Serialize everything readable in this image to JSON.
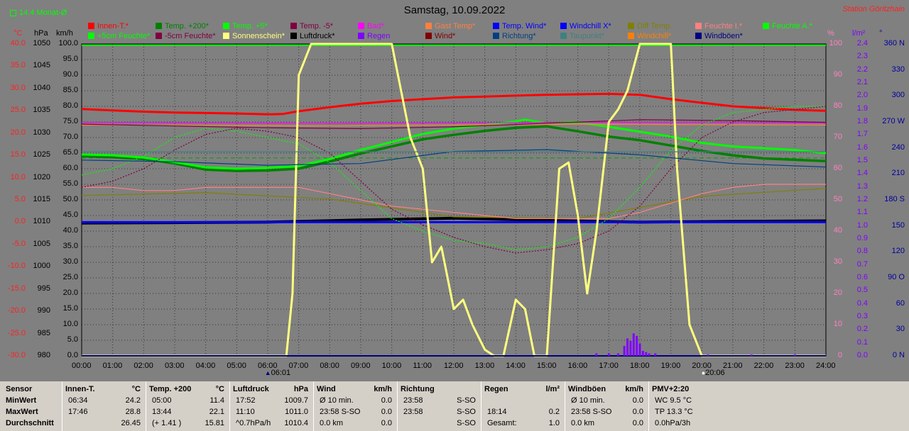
{
  "title": "Samstag, 10.09.2022",
  "station": "Station Göritzhain",
  "avg_indicator": "14.4 Monat-Ø",
  "units": {
    "c": "°C",
    "hpa": "hPa",
    "kmh": "km/h",
    "pct": "%",
    "lm2": "l/m²",
    "deg": "°"
  },
  "legend": [
    {
      "label": "Innen-T.*",
      "color": "#ff0000"
    },
    {
      "label": "Temp. +200*",
      "color": "#008000"
    },
    {
      "label": "Temp. +5*",
      "color": "#00ff00"
    },
    {
      "label": "Temp. -5*",
      "color": "#800040"
    },
    {
      "label": "Bad*",
      "color": "#ff00ff"
    },
    {
      "label": "Gast Temp*",
      "color": "#ff8040"
    },
    {
      "label": "Temp. Wind*",
      "color": "#0000ff"
    },
    {
      "label": "Windchill X*",
      "color": "#0000ff"
    },
    {
      "label": "Diff Temp.",
      "color": "#808000"
    },
    {
      "label": "Feuchte I.*",
      "color": "#ff8080"
    },
    {
      "label": "Feuchte A.*",
      "color": "#00ff00"
    },
    {
      "label": "+5cm Feuchte*",
      "color": "#00ff00"
    },
    {
      "label": "-5cm Feuchte*",
      "color": "#800040"
    },
    {
      "label": "Sonnenschein*",
      "color": "#ffff80"
    },
    {
      "label": "Luftdruck*",
      "color": "#000000"
    },
    {
      "label": "Regen",
      "color": "#8000ff"
    },
    {
      "label": "Wind*",
      "color": "#800000"
    },
    {
      "label": "Richtung*",
      "color": "#004080"
    },
    {
      "label": "Taupunkt*",
      "color": "#408080"
    },
    {
      "label": "Windchill*",
      "color": "#ff8000"
    },
    {
      "label": "Windböen*",
      "color": "#000080"
    }
  ],
  "chart_data": {
    "type": "line",
    "title": "Samstag, 10.09.2022",
    "x_labels": [
      "00:00",
      "01:00",
      "02:00",
      "03:00",
      "04:00",
      "05:00",
      "06:00",
      "07:00",
      "08:00",
      "09:00",
      "10:00",
      "11:00",
      "12:00",
      "13:00",
      "14:00",
      "15:00",
      "16:00",
      "17:00",
      "18:00",
      "19:00",
      "20:00",
      "21:00",
      "22:00",
      "23:00",
      "24:00"
    ],
    "xlim": [
      0,
      24
    ],
    "axes": {
      "temp_c": {
        "ticks": [
          "40.0",
          "35.0",
          "30.0",
          "25.0",
          "20.0",
          "15.0",
          "10.0",
          "5.0",
          "0.0",
          "-5.0",
          "-10.0",
          "-15.0",
          "-20.0",
          "-25.0",
          "-30.0"
        ],
        "range": [
          -30,
          40
        ],
        "color": "#ff0000"
      },
      "pressure_hpa": {
        "ticks": [
          "1050",
          "1045",
          "1040",
          "1035",
          "1030",
          "1025",
          "1020",
          "1015",
          "1010",
          "1005",
          "1000",
          "995",
          "990",
          "985",
          "980"
        ],
        "range": [
          980,
          1050
        ],
        "color": "#000000"
      },
      "wind_kmh": {
        "ticks": [
          "100.0",
          "95.0",
          "90.0",
          "85.0",
          "80.0",
          "75.0",
          "70.0",
          "65.0",
          "60.0",
          "55.0",
          "50.0",
          "45.0",
          "40.0",
          "35.0",
          "30.0",
          "25.0",
          "20.0",
          "15.0",
          "10.0",
          "5.0",
          "0.0"
        ],
        "range": [
          0,
          100
        ],
        "color": "#000000"
      },
      "humidity_pct": {
        "ticks": [
          "100",
          "90",
          "80",
          "70",
          "60",
          "50",
          "40",
          "30",
          "20",
          "10",
          "0"
        ],
        "range": [
          0,
          100
        ],
        "color": "#ff8080"
      },
      "rain_lm2": {
        "ticks": [
          "2.4",
          "2.3",
          "2.2",
          "2.1",
          "2.0",
          "1.9",
          "1.8",
          "1.7",
          "1.6",
          "1.5",
          "1.4",
          "1.3",
          "1.2",
          "1.1",
          "1.0",
          "0.9",
          "0.8",
          "0.7",
          "0.6",
          "0.5",
          "0.4",
          "0.3",
          "0.2",
          "0.1",
          "0.0"
        ],
        "range": [
          0,
          2.5
        ],
        "color": "#8000ff"
      },
      "direction_deg": {
        "ticks": [
          "360 N",
          "330",
          "300",
          "270 W",
          "240",
          "210",
          "180 S",
          "150",
          "120",
          "90 O",
          "60",
          "30",
          "0 N"
        ],
        "range": [
          0,
          360
        ],
        "color": "#0000a0"
      }
    },
    "series": [
      {
        "name": "Innen-T.*",
        "axis": "temp_c",
        "color": "#ff0000",
        "x": [
          0,
          1,
          2,
          3,
          4,
          5,
          6,
          6.5,
          7,
          8,
          9,
          10,
          11,
          12,
          13,
          14,
          15,
          16,
          17,
          18,
          19,
          20,
          21,
          22,
          23,
          24
        ],
        "y": [
          25.4,
          25.1,
          24.8,
          24.6,
          24.5,
          24.4,
          24.2,
          24.3,
          24.9,
          25.8,
          26.6,
          27.2,
          27.6,
          28.0,
          28.2,
          28.4,
          28.6,
          28.7,
          28.8,
          28.6,
          27.6,
          26.8,
          26.0,
          25.6,
          25.2,
          25.0
        ]
      },
      {
        "name": "Temp. +200*",
        "axis": "temp_c",
        "color": "#008000",
        "x": [
          0,
          1,
          2,
          3,
          4,
          5,
          6,
          7,
          8,
          9,
          10,
          11,
          12,
          13,
          14,
          15,
          16,
          17,
          18,
          19,
          20,
          21,
          22,
          23,
          24
        ],
        "y": [
          14.8,
          14.6,
          14.2,
          13.2,
          11.8,
          11.5,
          11.6,
          12.0,
          13.6,
          15.4,
          17.0,
          18.6,
          19.6,
          20.5,
          21.2,
          21.5,
          20.4,
          19.2,
          18.4,
          17.2,
          16.0,
          15.0,
          14.3,
          14.0,
          13.7
        ]
      },
      {
        "name": "Temp. +5*",
        "axis": "temp_c",
        "color": "#00ff00",
        "x": [
          0,
          1,
          2,
          3,
          4,
          5,
          6,
          7,
          8,
          9,
          10,
          11,
          12,
          13,
          14,
          14.3,
          15,
          16,
          17,
          18,
          19,
          20,
          21,
          22,
          23,
          24
        ],
        "y": [
          15.2,
          15.0,
          14.5,
          13.5,
          12.3,
          12.0,
          12.2,
          12.6,
          14.2,
          16.2,
          18.0,
          19.8,
          21.0,
          21.8,
          22.6,
          23.0,
          22.2,
          22.4,
          21.4,
          20.3,
          19.2,
          17.8,
          17.0,
          16.6,
          16.2,
          15.5
        ]
      },
      {
        "name": "Bad*",
        "axis": "temp_c",
        "color": "#ff00ff",
        "x": [
          0,
          4,
          8,
          12,
          16,
          20,
          24
        ],
        "y": [
          22.4,
          22.3,
          22.2,
          22.3,
          22.4,
          22.4,
          22.3
        ]
      },
      {
        "name": "Gast Temp*",
        "axis": "temp_c",
        "color": "#ff8040",
        "x": [
          0,
          4,
          8,
          12,
          16,
          20,
          24
        ],
        "y": [
          21.8,
          21.7,
          21.6,
          21.8,
          22.0,
          21.9,
          21.8
        ]
      },
      {
        "name": "Temp. -5*",
        "axis": "temp_c",
        "color": "#800040",
        "x": [
          0,
          3,
          6,
          9,
          12,
          15,
          18,
          21,
          24
        ],
        "y": [
          22.0,
          21.6,
          21.2,
          21.0,
          21.4,
          22.2,
          23.0,
          22.8,
          22.4
        ]
      },
      {
        "name": "Luftdruck*",
        "axis": "pressure_hpa",
        "color": "#000000",
        "x": [
          0,
          3,
          6,
          9,
          12,
          15,
          18,
          21,
          24
        ],
        "y": [
          1009.8,
          1009.9,
          1010.0,
          1010.5,
          1010.9,
          1010.4,
          1010.0,
          1010.2,
          1010.3
        ]
      },
      {
        "name": "Windchill X*",
        "axis": "pressure_hpa",
        "color": "#0000ff",
        "x": [
          0,
          24
        ],
        "y": [
          1010.0,
          1010.0
        ]
      },
      {
        "name": "Diff Temp.",
        "axis": "temp_c",
        "color": "#808000",
        "x": [
          0,
          4,
          8,
          12,
          16,
          20,
          24
        ],
        "y": [
          6.0,
          6.6,
          5.2,
          1.2,
          0.8,
          5.8,
          7.6
        ]
      },
      {
        "name": "Feuchte I.*",
        "axis": "humidity_pct",
        "color": "#ff8080",
        "x": [
          0,
          1,
          2,
          3,
          4,
          5,
          6,
          7,
          8,
          9,
          10,
          11,
          12,
          13,
          14,
          15,
          16,
          17,
          18,
          19,
          20,
          21,
          22,
          23,
          24
        ],
        "y": [
          54,
          54,
          53,
          53,
          54,
          54,
          54,
          54,
          52,
          50,
          48,
          47,
          46,
          45,
          44,
          44,
          44,
          44,
          46,
          49,
          52,
          54,
          55,
          55,
          55
        ]
      },
      {
        "name": "+5cm Feuchte*",
        "axis": "humidity_pct",
        "color": "#00ff00",
        "x": [
          0,
          1,
          2,
          3,
          4,
          5,
          6,
          7,
          8,
          9,
          10,
          11,
          12,
          13,
          14,
          15,
          16,
          17,
          18,
          19,
          20,
          21,
          22,
          23,
          24
        ],
        "y": [
          58,
          60,
          64,
          70,
          73,
          72,
          70,
          68,
          62,
          53,
          44,
          40,
          37,
          36,
          34,
          35,
          38,
          44,
          54,
          66,
          74,
          78,
          79,
          80,
          80
        ]
      },
      {
        "name": "-5cm Feuchte*",
        "axis": "humidity_pct",
        "color": "#800040",
        "x": [
          0,
          1,
          2,
          3,
          4,
          5,
          6,
          7,
          8,
          9,
          10,
          11,
          12,
          13,
          14,
          15,
          16,
          17,
          18,
          19,
          20,
          21,
          22,
          23,
          24
        ],
        "y": [
          54,
          56,
          60,
          66,
          71,
          73,
          72,
          70,
          65,
          56,
          47,
          42,
          38,
          35,
          33,
          34,
          36,
          40,
          48,
          60,
          70,
          75,
          78,
          79,
          80
        ]
      },
      {
        "name": "Sonnenschein*",
        "axis": "humidity_pct",
        "color": "#ffff80",
        "x": [
          0,
          6.6,
          6.8,
          7.0,
          7.4,
          8.0,
          9.0,
          10.0,
          10.2,
          10.6,
          11.0,
          11.3,
          11.6,
          12.0,
          12.3,
          12.6,
          13.0,
          13.3,
          13.6,
          14.0,
          14.3,
          14.6,
          15.0,
          15.4,
          15.7,
          16.0,
          16.3,
          16.6,
          17.0,
          17.3,
          17.6,
          18.0,
          18.3,
          18.6,
          19.0,
          19.2,
          19.6,
          20.0,
          24
        ],
        "y": [
          0,
          0,
          20,
          90,
          100,
          100,
          100,
          100,
          90,
          70,
          60,
          30,
          35,
          15,
          18,
          10,
          2,
          0,
          0,
          18,
          15,
          0,
          0,
          60,
          62,
          45,
          20,
          40,
          75,
          79,
          85,
          100,
          100,
          100,
          100,
          60,
          10,
          0,
          0
        ]
      },
      {
        "name": "Wind*",
        "axis": "wind_kmh",
        "color": "#800000",
        "x": [
          0,
          24
        ],
        "y": [
          0,
          0
        ]
      },
      {
        "name": "Windböen*",
        "axis": "wind_kmh",
        "color": "#000080",
        "x": [
          0,
          24
        ],
        "y": [
          0,
          0
        ]
      },
      {
        "name": "Richtung*",
        "axis": "direction_deg",
        "color": "#004080",
        "x": [
          0,
          3,
          6,
          9,
          12,
          15,
          18,
          21,
          24
        ],
        "y": [
          226,
          224,
          220,
          222,
          236,
          238,
          232,
          222,
          218
        ]
      },
      {
        "name": "Taupunkt*",
        "axis": "temp_c",
        "color": "#408080",
        "x": [
          0,
          24
        ],
        "y": [
          15.8,
          15.8
        ]
      },
      {
        "name": "Regen",
        "axis": "rain_lm2",
        "color": "#8000ff",
        "type": "bar",
        "x": [
          16.6,
          17.0,
          17.3,
          17.5,
          17.6,
          17.7,
          17.8,
          17.9,
          18.0,
          18.1,
          18.2,
          18.3,
          18.5,
          20.2,
          21.6,
          23.0
        ],
        "y": [
          0.02,
          0.02,
          0.02,
          0.08,
          0.14,
          0.12,
          0.18,
          0.16,
          0.1,
          0.04,
          0.03,
          0.02,
          0.02,
          0.01,
          0.01,
          0.01
        ]
      }
    ]
  },
  "reference_lines": [
    {
      "name": "14.4 Monat-Ø",
      "axis": "temp_c",
      "value": 14.4,
      "color": "#00a000"
    }
  ],
  "markers": [
    {
      "icon": "sunrise-icon",
      "time": "06:01"
    },
    {
      "icon": "sunset-icon",
      "time": "20:06"
    }
  ],
  "stats": {
    "row_labels": [
      "Sensor",
      "MinWert",
      "MaxWert",
      "Durchschnitt"
    ],
    "cols": [
      {
        "title": "Innen-T.",
        "unit": "°C",
        "rows": [
          [
            "06:34",
            "24.2"
          ],
          [
            "17:46",
            "28.8"
          ],
          [
            "",
            "26.45"
          ]
        ]
      },
      {
        "title": "Temp. +200",
        "unit": "°C",
        "rows": [
          [
            "05:00",
            "11.4"
          ],
          [
            "13:44",
            "22.1"
          ],
          [
            "(+ 1.41 )",
            "15.81"
          ]
        ]
      },
      {
        "title": "Luftdruck",
        "unit": "hPa",
        "rows": [
          [
            "17:52",
            "1009.7"
          ],
          [
            "11:10",
            "1011.0"
          ],
          [
            "^0.7hPa/h",
            "1010.4"
          ]
        ]
      },
      {
        "title": "Wind",
        "unit": "km/h",
        "rows": [
          [
            "Ø 10 min.",
            "0.0"
          ],
          [
            "23:58  S-SO",
            "0.0"
          ],
          [
            "0.0 km",
            "0.0"
          ]
        ]
      },
      {
        "title": "Richtung",
        "unit": "",
        "rows": [
          [
            "23:58",
            "S-SO"
          ],
          [
            "23:58",
            "S-SO"
          ],
          [
            "",
            "S-SO"
          ]
        ]
      },
      {
        "title": "Regen",
        "unit": "l/m²",
        "rows": [
          [
            "",
            ""
          ],
          [
            "18:14",
            "0.2"
          ],
          [
            "Gesamt:",
            "1.0"
          ]
        ]
      },
      {
        "title": "Windböen",
        "unit": "km/h",
        "rows": [
          [
            "Ø 10 min.",
            "0.0"
          ],
          [
            "23:58  S-SO",
            "0.0"
          ],
          [
            "0.0 km",
            "0.0"
          ]
        ]
      },
      {
        "title": "PMV+2:20",
        "unit": "",
        "rows": [
          [
            "WC 9.5 °C",
            ""
          ],
          [
            "TP 13.3 °C",
            ""
          ],
          [
            "0.0hPa/3h",
            ""
          ]
        ]
      }
    ]
  }
}
